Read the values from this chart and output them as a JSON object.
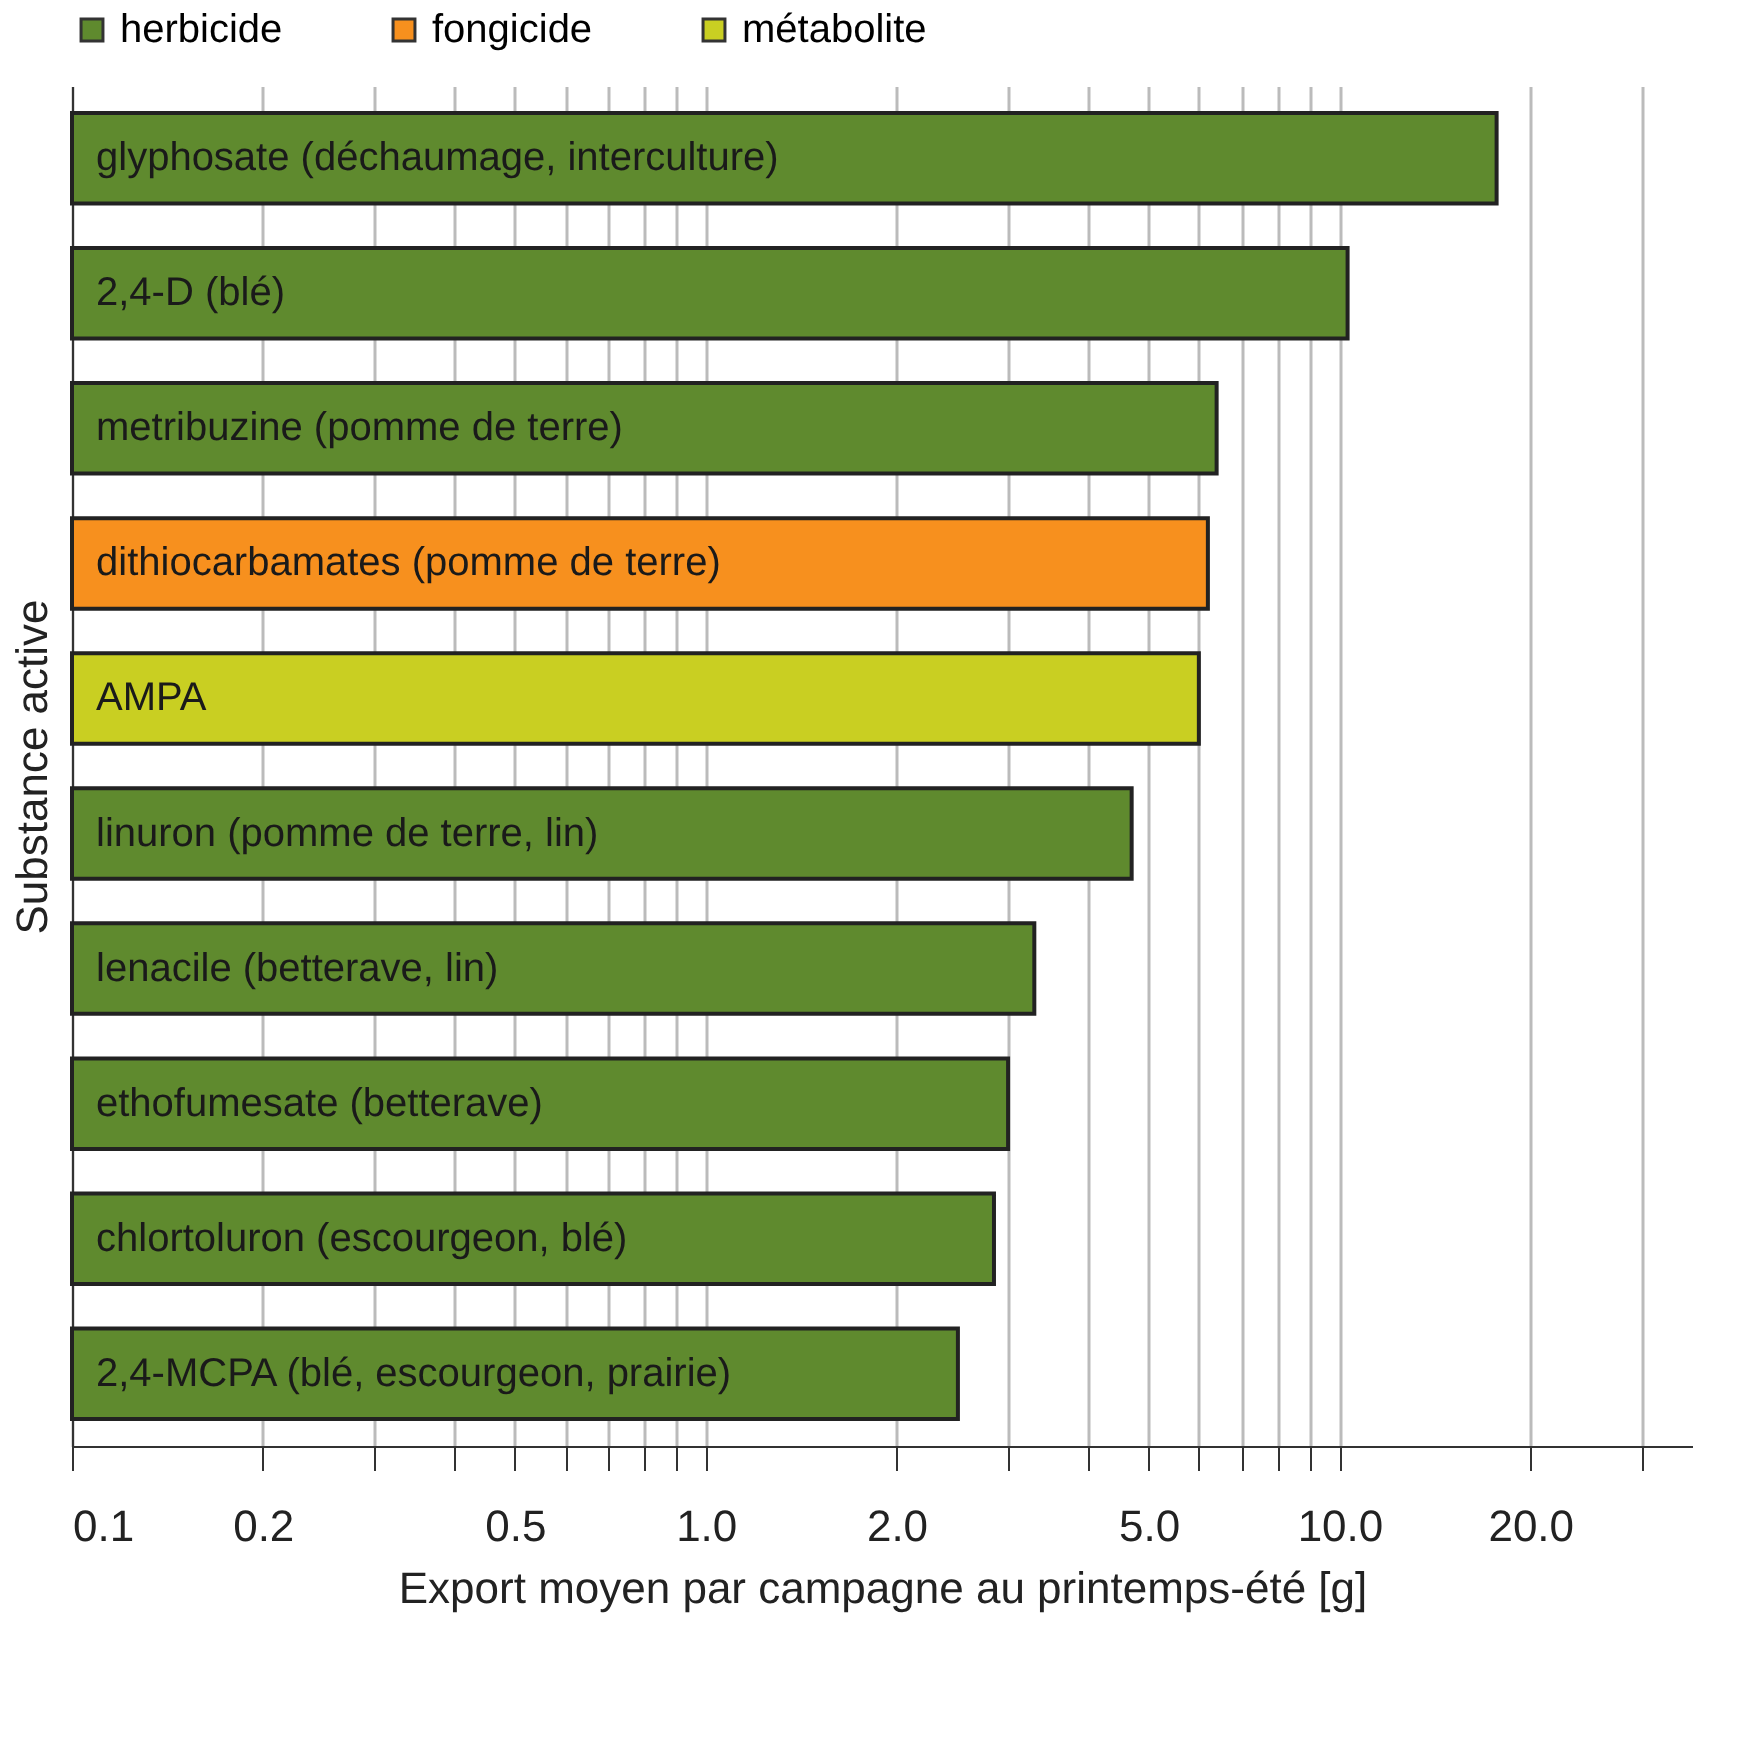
{
  "chart_data": {
    "type": "bar",
    "orientation": "horizontal",
    "xlabel": "Export moyen par campagne au printemps-été [g]",
    "ylabel": "Substance active",
    "categories": [
      "glyphosate (déchaumage, interculture)",
      "2,4-D (blé)",
      "metribuzine (pomme de terre)",
      "dithiocarbamates (pomme de terre)",
      "AMPA",
      "linuron (pomme de terre, lin)",
      "lenacile (betterave, lin)",
      "ethofumesate (betterave)",
      "chlortoluron (escourgeon, blé)",
      "2,4-MCPA (blé, escourgeon, prairie)"
    ],
    "series": [
      {
        "name": "herbicide",
        "color": "#5f8a2e",
        "values": [
          17.7,
          10.3,
          6.4,
          null,
          null,
          4.7,
          3.3,
          3.0,
          2.85,
          2.5
        ]
      },
      {
        "name": "fongicide",
        "color": "#f7901e",
        "values": [
          null,
          null,
          null,
          6.2,
          null,
          null,
          null,
          null,
          null,
          null
        ]
      },
      {
        "name": "métabolite",
        "color": "#c9cf22",
        "values": [
          null,
          null,
          null,
          null,
          6.0,
          null,
          null,
          null,
          null,
          null
        ]
      }
    ],
    "log": "x",
    "xlim": [
      0.1,
      36
    ],
    "xticks": [
      {
        "value": 0.1,
        "label": "0.1"
      },
      {
        "value": 0.2,
        "label": "0.2"
      },
      {
        "value": 0.3,
        "label": null
      },
      {
        "value": 0.4,
        "label": null
      },
      {
        "value": 0.5,
        "label": "0.5"
      },
      {
        "value": 0.6,
        "label": null
      },
      {
        "value": 0.7,
        "label": null
      },
      {
        "value": 0.8,
        "label": null
      },
      {
        "value": 0.9,
        "label": null
      },
      {
        "value": 1,
        "label": "1.0"
      },
      {
        "value": 2,
        "label": "2.0"
      },
      {
        "value": 3,
        "label": null
      },
      {
        "value": 4,
        "label": null
      },
      {
        "value": 5,
        "label": "5.0"
      },
      {
        "value": 6,
        "label": null
      },
      {
        "value": 7,
        "label": null
      },
      {
        "value": 8,
        "label": null
      },
      {
        "value": 9,
        "label": null
      },
      {
        "value": 10,
        "label": "10.0"
      },
      {
        "value": 20,
        "label": "20.0"
      },
      {
        "value": 30,
        "label": null
      }
    ],
    "grid": "x",
    "legend": "top",
    "tick_labels": "x"
  }
}
